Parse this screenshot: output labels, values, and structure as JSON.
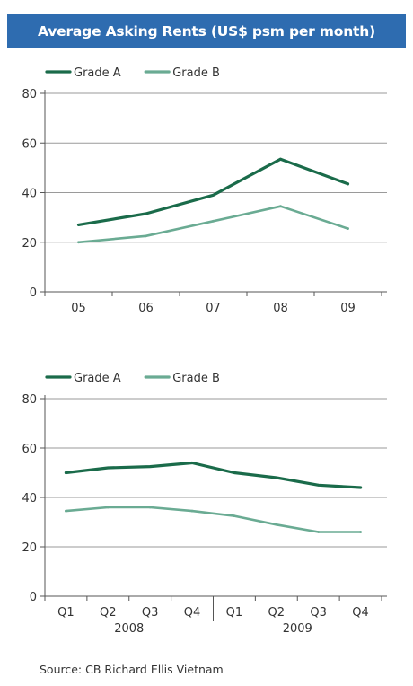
{
  "title": "Average Asking Rents (US$ psm per month)",
  "source": "Source: CB Richard Ellis Vietnam",
  "colors": {
    "header_bg": "#2e6cb0",
    "grade_a": "#1a6b4a",
    "grade_b": "#6aab93",
    "grid": "#9a9a9a"
  },
  "chart_data": [
    {
      "type": "line",
      "categories": [
        "05",
        "06",
        "07",
        "08",
        "09"
      ],
      "series": [
        {
          "name": "Grade A",
          "values": [
            27,
            31.5,
            39,
            53.5,
            43.5
          ]
        },
        {
          "name": "Grade B",
          "values": [
            20,
            22.5,
            28.5,
            34.5,
            25.5
          ]
        }
      ],
      "ylim": [
        0,
        80
      ],
      "yticks": [
        0,
        20,
        40,
        60,
        80
      ],
      "grid": true,
      "legend": "top-left"
    },
    {
      "type": "line",
      "categories": [
        "Q1",
        "Q2",
        "Q3",
        "Q4",
        "Q1",
        "Q2",
        "Q3",
        "Q4"
      ],
      "groups": [
        {
          "label": "2008",
          "span": [
            0,
            3
          ]
        },
        {
          "label": "2009",
          "span": [
            4,
            7
          ]
        }
      ],
      "series": [
        {
          "name": "Grade A",
          "values": [
            50,
            52,
            52.5,
            54,
            50,
            48,
            45,
            44
          ]
        },
        {
          "name": "Grade B",
          "values": [
            34.5,
            36,
            36,
            34.5,
            32.5,
            29,
            26,
            26
          ]
        }
      ],
      "ylim": [
        0,
        80
      ],
      "yticks": [
        0,
        20,
        40,
        60,
        80
      ],
      "grid": true,
      "legend": "top-left"
    }
  ]
}
